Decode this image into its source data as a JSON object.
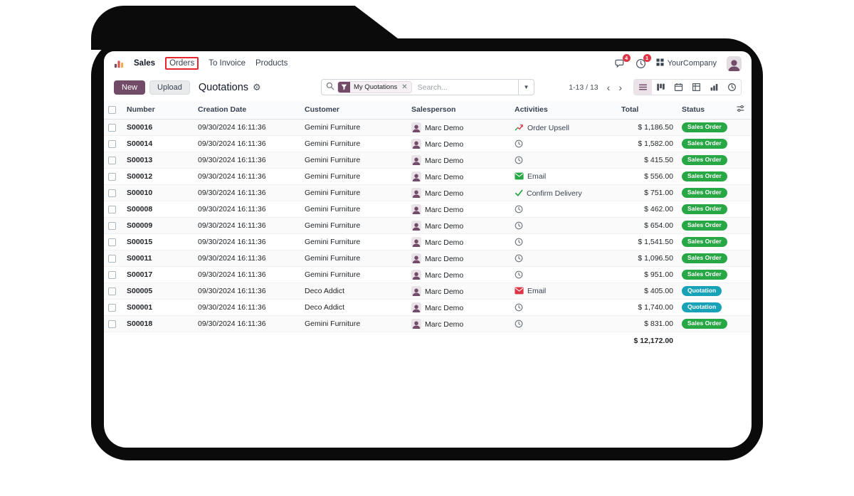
{
  "navbar": {
    "menus": [
      {
        "label": "Sales"
      },
      {
        "label": "Orders",
        "annotated": true
      },
      {
        "label": "To Invoice"
      },
      {
        "label": "Products"
      }
    ],
    "systray": {
      "messages_badge": "4",
      "activities_badge": "1",
      "company": "YourCompany"
    }
  },
  "control_panel": {
    "new_label": "New",
    "upload_label": "Upload",
    "breadcrumb": "Quotations",
    "search": {
      "facet_label": "My Quotations",
      "placeholder": "Search..."
    },
    "pager": {
      "text": "1-13 / 13"
    }
  },
  "icons": {
    "apps": "bar-chart-glyph",
    "messages": "chat-bubble",
    "activities": "clock",
    "search": "magnifier",
    "filter_facet": "funnel",
    "view_switcher": [
      "list",
      "kanban",
      "calendar",
      "pivot",
      "graph",
      "activity-clock"
    ],
    "header_adjust": "sliders"
  },
  "colors": {
    "brand": "#714B67",
    "sales_order_badge": "#28a745",
    "quotation_badge": "#17a2b8",
    "notification_badge": "#dc3545",
    "annotation_box": "#e8262d"
  },
  "table": {
    "columns": [
      "Number",
      "Creation Date",
      "Customer",
      "Salesperson",
      "Activities",
      "Total",
      "Status"
    ],
    "rows": [
      {
        "number": "S00016",
        "creation_date": "09/30/2024 16:11:36",
        "customer": "Gemini Furniture",
        "salesperson": "Marc Demo",
        "activity": {
          "icon": "upsell-chart",
          "label": "Order Upsell"
        },
        "total": "$ 1,186.50",
        "status": {
          "label": "Sales Order",
          "type": "success"
        }
      },
      {
        "number": "S00014",
        "creation_date": "09/30/2024 16:11:36",
        "customer": "Gemini Furniture",
        "salesperson": "Marc Demo",
        "activity": {
          "icon": "clock",
          "label": ""
        },
        "total": "$ 1,582.00",
        "status": {
          "label": "Sales Order",
          "type": "success"
        }
      },
      {
        "number": "S00013",
        "creation_date": "09/30/2024 16:11:36",
        "customer": "Gemini Furniture",
        "salesperson": "Marc Demo",
        "activity": {
          "icon": "clock",
          "label": ""
        },
        "total": "$ 415.50",
        "status": {
          "label": "Sales Order",
          "type": "success"
        }
      },
      {
        "number": "S00012",
        "creation_date": "09/30/2024 16:11:36",
        "customer": "Gemini Furniture",
        "salesperson": "Marc Demo",
        "activity": {
          "icon": "email-green",
          "label": "Email"
        },
        "total": "$ 556.00",
        "status": {
          "label": "Sales Order",
          "type": "success"
        }
      },
      {
        "number": "S00010",
        "creation_date": "09/30/2024 16:11:36",
        "customer": "Gemini Furniture",
        "salesperson": "Marc Demo",
        "activity": {
          "icon": "check",
          "label": "Confirm Delivery"
        },
        "total": "$ 751.00",
        "status": {
          "label": "Sales Order",
          "type": "success"
        }
      },
      {
        "number": "S00008",
        "creation_date": "09/30/2024 16:11:36",
        "customer": "Gemini Furniture",
        "salesperson": "Marc Demo",
        "activity": {
          "icon": "clock",
          "label": ""
        },
        "total": "$ 462.00",
        "status": {
          "label": "Sales Order",
          "type": "success"
        }
      },
      {
        "number": "S00009",
        "creation_date": "09/30/2024 16:11:36",
        "customer": "Gemini Furniture",
        "salesperson": "Marc Demo",
        "activity": {
          "icon": "clock",
          "label": ""
        },
        "total": "$ 654.00",
        "status": {
          "label": "Sales Order",
          "type": "success"
        }
      },
      {
        "number": "S00015",
        "creation_date": "09/30/2024 16:11:36",
        "customer": "Gemini Furniture",
        "salesperson": "Marc Demo",
        "activity": {
          "icon": "clock",
          "label": ""
        },
        "total": "$ 1,541.50",
        "status": {
          "label": "Sales Order",
          "type": "success"
        }
      },
      {
        "number": "S00011",
        "creation_date": "09/30/2024 16:11:36",
        "customer": "Gemini Furniture",
        "salesperson": "Marc Demo",
        "activity": {
          "icon": "clock",
          "label": ""
        },
        "total": "$ 1,096.50",
        "status": {
          "label": "Sales Order",
          "type": "success"
        }
      },
      {
        "number": "S00017",
        "creation_date": "09/30/2024 16:11:36",
        "customer": "Gemini Furniture",
        "salesperson": "Marc Demo",
        "activity": {
          "icon": "clock",
          "label": ""
        },
        "total": "$ 951.00",
        "status": {
          "label": "Sales Order",
          "type": "success"
        }
      },
      {
        "number": "S00005",
        "creation_date": "09/30/2024 16:11:36",
        "customer": "Deco Addict",
        "salesperson": "Marc Demo",
        "activity": {
          "icon": "email-red",
          "label": "Email"
        },
        "total": "$ 405.00",
        "status": {
          "label": "Quotation",
          "type": "info"
        }
      },
      {
        "number": "S00001",
        "creation_date": "09/30/2024 16:11:36",
        "customer": "Deco Addict",
        "salesperson": "Marc Demo",
        "activity": {
          "icon": "clock",
          "label": ""
        },
        "total": "$ 1,740.00",
        "status": {
          "label": "Quotation",
          "type": "info"
        }
      },
      {
        "number": "S00018",
        "creation_date": "09/30/2024 16:11:36",
        "customer": "Gemini Furniture",
        "salesperson": "Marc Demo",
        "activity": {
          "icon": "clock",
          "label": ""
        },
        "total": "$ 831.00",
        "status": {
          "label": "Sales Order",
          "type": "success"
        }
      }
    ],
    "footer_total": "$ 12,172.00"
  }
}
